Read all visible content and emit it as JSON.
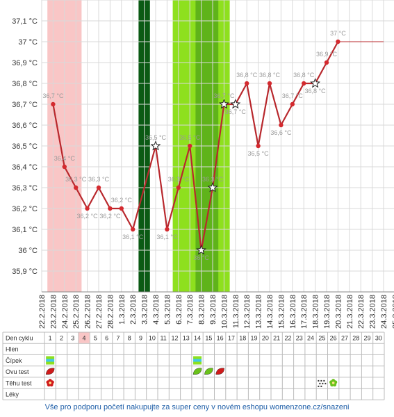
{
  "chart_data": {
    "type": "line",
    "y_axis": {
      "min": 35.8,
      "max": 37.2,
      "step": 0.1,
      "unit": "°C",
      "tick_labels": [
        "35,9 °C",
        "36 °C",
        "36,1 °C",
        "36,2 °C",
        "36,3 °C",
        "36,4 °C",
        "36,5 °C",
        "36,6 °C",
        "36,7 °C",
        "36,8 °C",
        "36,9 °C",
        "37 °C",
        "37,1 °C"
      ]
    },
    "dates": [
      "22.2.2018",
      "23.2.2018",
      "24.2.2018",
      "25.2.2018",
      "26.2.2018",
      "27.2.2018",
      "28.2.2018",
      "1.3.2018",
      "2.3.2018",
      "3.3.2018",
      "4.3.2018",
      "5.3.2018",
      "6.3.2018",
      "7.3.2018",
      "8.3.2018",
      "9.3.2018",
      "10.3.2018",
      "11.3.2018",
      "12.3.2018",
      "13.3.2018",
      "14.3.2018",
      "15.3.2018",
      "16.3.2018",
      "17.3.2018",
      "18.3.2018",
      "19.3.2018",
      "20.3.2018",
      "21.3.2018",
      "22.3.2018",
      "23.3.2018",
      "24.3.2018",
      "25.3.2018"
    ],
    "series": [
      {
        "points": [
          {
            "date": "23.2.2018",
            "value": 36.7,
            "label": "36,7 °C",
            "marker": "dot"
          },
          {
            "date": "24.2.2018",
            "value": 36.4,
            "label": "36,4 °C",
            "marker": "dot"
          },
          {
            "date": "25.2.2018",
            "value": 36.3,
            "label": "36,3 °C",
            "marker": "dot"
          },
          {
            "date": "26.2.2018",
            "value": 36.2,
            "label": "36,2 °C",
            "marker": "dot"
          },
          {
            "date": "27.2.2018",
            "value": 36.3,
            "label": "36,3 °C",
            "marker": "dot"
          },
          {
            "date": "28.2.2018",
            "value": 36.2,
            "label": "36,2 °C",
            "marker": "dot"
          },
          {
            "date": "1.3.2018",
            "value": 36.2,
            "label": "36,2 °C",
            "marker": "dot"
          },
          {
            "date": "2.3.2018",
            "value": 36.1,
            "label": "36,1 °C",
            "marker": "dot"
          },
          {
            "date": "4.3.2018",
            "value": 36.5,
            "label": "36,5 °C",
            "marker": "star"
          },
          {
            "date": "5.3.2018",
            "value": 36.1,
            "label": "36,1 °C",
            "marker": "dot"
          },
          {
            "date": "6.3.2018",
            "value": 36.3,
            "label": "36,3 °C",
            "marker": "dot"
          },
          {
            "date": "7.3.2018",
            "value": 36.5,
            "label": "36,5 °C",
            "marker": "dot"
          },
          {
            "date": "8.3.2018",
            "value": 36.0,
            "label": "36 °C",
            "marker": "star"
          },
          {
            "date": "9.3.2018",
            "value": 36.3,
            "label": "36,3 °C",
            "marker": "star"
          },
          {
            "date": "10.3.2018",
            "value": 36.7,
            "label": "36,7 °C",
            "marker": "star"
          },
          {
            "date": "11.3.2018",
            "value": 36.7,
            "label": "36,7 °C",
            "marker": "star"
          },
          {
            "date": "12.3.2018",
            "value": 36.8,
            "label": "36,8 °C",
            "marker": "dot"
          },
          {
            "date": "13.3.2018",
            "value": 36.5,
            "label": "36,5 °C",
            "marker": "dot"
          },
          {
            "date": "14.3.2018",
            "value": 36.8,
            "label": "36,8 °C",
            "marker": "dot"
          },
          {
            "date": "15.3.2018",
            "value": 36.6,
            "label": "36,6 °C",
            "marker": "dot"
          },
          {
            "date": "16.3.2018",
            "value": 36.7,
            "label": "36,7 °C",
            "marker": "dot"
          },
          {
            "date": "17.3.2018",
            "value": 36.8,
            "label": "36,8 °C",
            "marker": "dot"
          },
          {
            "date": "18.3.2018",
            "value": 36.8,
            "label": "36,8 °C",
            "marker": "star"
          },
          {
            "date": "19.3.2018",
            "value": 36.9,
            "label": "36,9 °C",
            "marker": "dot"
          },
          {
            "date": "20.3.2018",
            "value": 37.0,
            "label": "37 °C",
            "marker": "dot"
          }
        ],
        "extension_to": "24.3.2018"
      }
    ],
    "highlights": [
      {
        "kind": "menstruation",
        "from": "23.2.2018",
        "to": "25.2.2018",
        "color": "#f9c6c6"
      },
      {
        "kind": "dark-green",
        "from": "3.3.2018",
        "to": "3.3.2018",
        "color": "#0b5a14"
      },
      {
        "kind": "fertile",
        "from": "6.3.2018",
        "to": "10.3.2018",
        "color": "#8ee01e"
      },
      {
        "kind": "fertile-peak",
        "from": "8.3.2018",
        "to": "9.3.2018",
        "color": "#5fb31a"
      }
    ],
    "colors": {
      "line": "#b8282d",
      "marker": "#d42a2f",
      "label": "#9a9a9a",
      "grid": "#d9d9d9"
    }
  },
  "table": {
    "day_header_label": "Den cyklu",
    "days": [
      "1",
      "2",
      "3",
      "4",
      "5",
      "6",
      "7",
      "8",
      "9",
      "10",
      "11",
      "12",
      "13",
      "14",
      "15",
      "16",
      "17",
      "18",
      "19",
      "20",
      "21",
      "22",
      "23",
      "24",
      "25",
      "26",
      "27",
      "28",
      "29",
      "30"
    ],
    "highlighted_day": "4",
    "rows": [
      "Hlen",
      "Čípek",
      "Ovu test",
      "Těhu test",
      "Léky"
    ],
    "icons": [
      {
        "row": "Čípek",
        "day": "1",
        "icon": "cervix-striped-icon"
      },
      {
        "row": "Čípek",
        "day": "14",
        "icon": "cervix-striped-icon"
      },
      {
        "row": "Ovu test",
        "day": "1",
        "icon": "red-leaf-icon"
      },
      {
        "row": "Ovu test",
        "day": "14",
        "icon": "green-leaf-icon"
      },
      {
        "row": "Ovu test",
        "day": "15",
        "icon": "green-leaf-icon"
      },
      {
        "row": "Ovu test",
        "day": "16",
        "icon": "red-leaf-icon"
      },
      {
        "row": "Těhu test",
        "day": "1",
        "icon": "red-flower-icon"
      },
      {
        "row": "Těhu test",
        "day": "25",
        "icon": "question-pattern-icon"
      },
      {
        "row": "Těhu test",
        "day": "26",
        "icon": "green-flower-icon"
      }
    ]
  },
  "footer": {
    "text": "Vše pro podporu početí nakupujte za super ceny v novém eshopu womenzone.cz/snazeni"
  }
}
